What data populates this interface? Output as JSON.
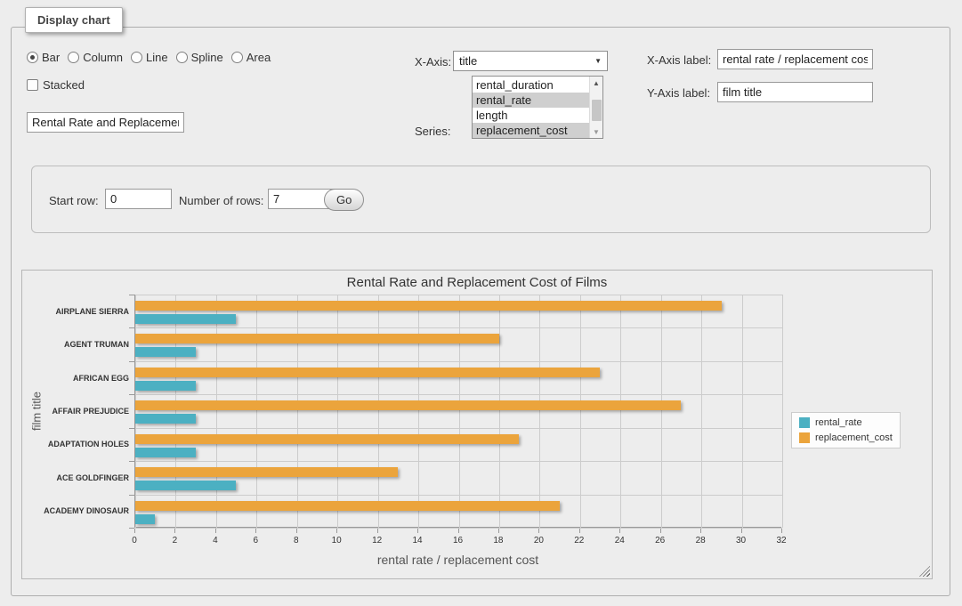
{
  "panel": {
    "legend": "Display chart",
    "chart_types": [
      {
        "label": "Bar",
        "selected": true
      },
      {
        "label": "Column",
        "selected": false
      },
      {
        "label": "Line",
        "selected": false
      },
      {
        "label": "Spline",
        "selected": false
      },
      {
        "label": "Area",
        "selected": false
      }
    ],
    "stacked": {
      "label": "Stacked",
      "checked": false
    },
    "chart_title_input": {
      "value": "Rental Rate and Replacement Cost of Films"
    },
    "x_axis": {
      "label": "X-Axis:",
      "selected": "title"
    },
    "series_select": {
      "label": "Series:",
      "options": [
        {
          "label": "rental_duration",
          "selected": false
        },
        {
          "label": "rental_rate",
          "selected": true
        },
        {
          "label": "length",
          "selected": false
        },
        {
          "label": "replacement_cost",
          "selected": true
        }
      ]
    },
    "x_axis_label": {
      "label": "X-Axis label:",
      "value": "rental rate / replacement cost"
    },
    "y_axis_label": {
      "label": "Y-Axis label:",
      "value": "film title"
    }
  },
  "row_controls": {
    "start_row_label": "Start row:",
    "start_row_value": "0",
    "num_rows_label": "Number of rows:",
    "num_rows_value": "7",
    "go_label": "Go"
  },
  "chart_data": {
    "type": "bar",
    "title": "Rental Rate and Replacement Cost of Films",
    "categories": [
      "AIRPLANE SIERRA",
      "AGENT TRUMAN",
      "AFRICAN EGG",
      "AFFAIR PREJUDICE",
      "ADAPTATION HOLES",
      "ACE GOLDFINGER",
      "ACADEMY DINOSAUR"
    ],
    "series": [
      {
        "name": "rental_rate",
        "color": "#4cb0c2",
        "values": [
          4.99,
          2.99,
          2.99,
          2.99,
          2.99,
          4.99,
          0.99
        ]
      },
      {
        "name": "replacement_cost",
        "color": "#eba43c",
        "values": [
          28.99,
          17.99,
          22.99,
          26.99,
          18.99,
          12.99,
          20.99
        ]
      }
    ],
    "series_draw_order": [
      1,
      0
    ],
    "xlabel": "rental rate / replacement cost",
    "ylabel": "film title",
    "xlim": [
      0,
      32
    ],
    "xticks": [
      0,
      2,
      4,
      6,
      8,
      10,
      12,
      14,
      16,
      18,
      20,
      22,
      24,
      26,
      28,
      30,
      32
    ],
    "grid": true,
    "legend_position": "right",
    "legend": [
      "rental_rate",
      "replacement_cost"
    ]
  },
  "colors": {
    "rental_rate": "#4cb0c2",
    "replacement_cost": "#eba43c",
    "selection_gray": "#cfcfcf",
    "page_bg": "#ededed"
  }
}
